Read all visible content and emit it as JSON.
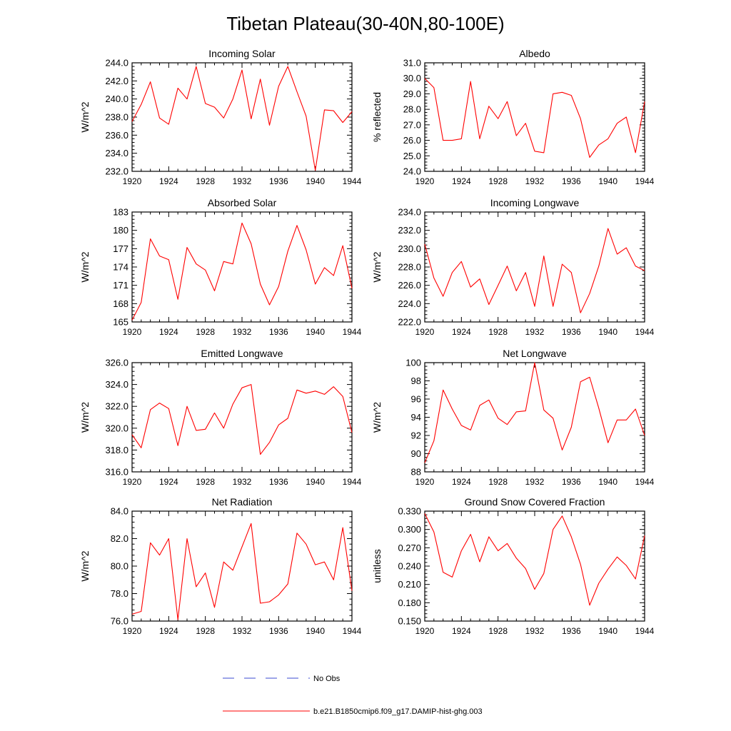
{
  "figure": {
    "title": "Tibetan Plateau(30-40N,80-100E)",
    "legend": [
      {
        "label": "No Obs",
        "color": "#3b4bd0",
        "style": "dashed"
      },
      {
        "label": "b.e21.B1850cmip6.f09_g17.DAMIP-hist-ghg.003",
        "color": "#ff0000",
        "style": "solid"
      }
    ]
  },
  "chart_data": [
    {
      "type": "line",
      "title": "Incoming Solar",
      "ylabel": "W/m^2",
      "xlim": [
        1920,
        1944
      ],
      "ylim": [
        232,
        244
      ],
      "xticks": [
        "1920",
        "1924",
        "1928",
        "1932",
        "1936",
        "1940",
        "1944"
      ],
      "yticks": [
        "232.0",
        "234.0",
        "236.0",
        "238.0",
        "240.0",
        "242.0",
        "244.0"
      ],
      "x": [
        1920,
        1921,
        1922,
        1923,
        1924,
        1925,
        1926,
        1927,
        1928,
        1929,
        1930,
        1931,
        1932,
        1933,
        1934,
        1935,
        1936,
        1937,
        1938,
        1939,
        1940,
        1941,
        1942,
        1943,
        1944
      ],
      "series": [
        {
          "color": "#ff0000",
          "values": [
            237.5,
            239.4,
            241.9,
            237.9,
            237.2,
            241.2,
            240.0,
            243.6,
            239.5,
            239.1,
            237.9,
            240.0,
            243.2,
            237.8,
            242.2,
            237.1,
            241.4,
            243.6,
            240.8,
            238.1,
            232.1,
            238.8,
            238.7,
            237.4,
            238.6
          ]
        }
      ]
    },
    {
      "type": "line",
      "title": "Albedo",
      "ylabel": "% reflected",
      "xlim": [
        1920,
        1944
      ],
      "ylim": [
        24,
        31
      ],
      "xticks": [
        "1920",
        "1924",
        "1928",
        "1932",
        "1936",
        "1940",
        "1944"
      ],
      "yticks": [
        "24.0",
        "25.0",
        "26.0",
        "27.0",
        "28.0",
        "29.0",
        "30.0",
        "31.0"
      ],
      "x": [
        1920,
        1921,
        1922,
        1923,
        1924,
        1925,
        1926,
        1927,
        1928,
        1929,
        1930,
        1931,
        1932,
        1933,
        1934,
        1935,
        1936,
        1937,
        1938,
        1939,
        1940,
        1941,
        1942,
        1943,
        1944
      ],
      "series": [
        {
          "color": "#ff0000",
          "values": [
            30.0,
            29.4,
            26.0,
            26.0,
            26.1,
            29.8,
            26.1,
            28.2,
            27.4,
            28.5,
            26.3,
            27.1,
            25.3,
            25.2,
            29.0,
            29.1,
            28.9,
            27.4,
            24.9,
            25.7,
            26.1,
            27.1,
            27.5,
            25.2,
            28.5
          ]
        }
      ]
    },
    {
      "type": "line",
      "title": "Absorbed Solar",
      "ylabel": "W/m^2",
      "xlim": [
        1920,
        1944
      ],
      "ylim": [
        165,
        183
      ],
      "xticks": [
        "1920",
        "1924",
        "1928",
        "1932",
        "1936",
        "1940",
        "1944"
      ],
      "yticks": [
        "165",
        "168",
        "171",
        "174",
        "177",
        "180",
        "183"
      ],
      "x": [
        1920,
        1921,
        1922,
        1923,
        1924,
        1925,
        1926,
        1927,
        1928,
        1929,
        1930,
        1931,
        1932,
        1933,
        1934,
        1935,
        1936,
        1937,
        1938,
        1939,
        1940,
        1941,
        1942,
        1943,
        1944
      ],
      "series": [
        {
          "color": "#ff0000",
          "values": [
            165.3,
            168.2,
            178.6,
            175.8,
            175.2,
            168.7,
            177.2,
            174.5,
            173.5,
            170.1,
            174.9,
            174.5,
            181.2,
            177.8,
            171.2,
            167.8,
            170.8,
            176.6,
            180.8,
            176.8,
            171.2,
            173.9,
            172.6,
            177.5,
            170.5
          ]
        }
      ]
    },
    {
      "type": "line",
      "title": "Incoming Longwave",
      "ylabel": "W/m^2",
      "xlim": [
        1920,
        1944
      ],
      "ylim": [
        222,
        234
      ],
      "xticks": [
        "1920",
        "1924",
        "1928",
        "1932",
        "1936",
        "1940",
        "1944"
      ],
      "yticks": [
        "222.0",
        "224.0",
        "226.0",
        "228.0",
        "230.0",
        "232.0",
        "234.0"
      ],
      "x": [
        1920,
        1921,
        1922,
        1923,
        1924,
        1925,
        1926,
        1927,
        1928,
        1929,
        1930,
        1931,
        1932,
        1933,
        1934,
        1935,
        1936,
        1937,
        1938,
        1939,
        1940,
        1941,
        1942,
        1943,
        1944
      ],
      "series": [
        {
          "color": "#ff0000",
          "values": [
            230.5,
            226.8,
            224.8,
            227.4,
            228.6,
            225.8,
            226.7,
            223.9,
            226.0,
            228.1,
            225.4,
            227.4,
            223.7,
            229.2,
            223.7,
            228.3,
            227.4,
            223.0,
            225.1,
            228.1,
            232.2,
            229.4,
            230.1,
            228.1,
            227.6
          ]
        }
      ]
    },
    {
      "type": "line",
      "title": "Emitted Longwave",
      "ylabel": "W/m^2",
      "xlim": [
        1920,
        1944
      ],
      "ylim": [
        316,
        326
      ],
      "xticks": [
        "1920",
        "1924",
        "1928",
        "1932",
        "1936",
        "1940",
        "1944"
      ],
      "yticks": [
        "316.0",
        "318.0",
        "320.0",
        "322.0",
        "324.0",
        "326.0"
      ],
      "x": [
        1920,
        1921,
        1922,
        1923,
        1924,
        1925,
        1926,
        1927,
        1928,
        1929,
        1930,
        1931,
        1932,
        1933,
        1934,
        1935,
        1936,
        1937,
        1938,
        1939,
        1940,
        1941,
        1942,
        1943,
        1944
      ],
      "series": [
        {
          "color": "#ff0000",
          "values": [
            319.4,
            318.2,
            321.7,
            322.3,
            321.8,
            318.4,
            322.0,
            319.8,
            319.9,
            321.4,
            320.0,
            322.2,
            323.7,
            324.0,
            317.6,
            318.7,
            320.3,
            320.9,
            323.5,
            323.2,
            323.4,
            323.1,
            323.8,
            322.9,
            319.6
          ]
        }
      ]
    },
    {
      "type": "line",
      "title": "Net Longwave",
      "ylabel": "W/m^2",
      "xlim": [
        1920,
        1944
      ],
      "ylim": [
        88,
        100
      ],
      "xticks": [
        "1920",
        "1924",
        "1928",
        "1932",
        "1936",
        "1940",
        "1944"
      ],
      "yticks": [
        "88",
        "90",
        "92",
        "94",
        "96",
        "98",
        "100"
      ],
      "x": [
        1920,
        1921,
        1922,
        1923,
        1924,
        1925,
        1926,
        1927,
        1928,
        1929,
        1930,
        1931,
        1932,
        1933,
        1934,
        1935,
        1936,
        1937,
        1938,
        1939,
        1940,
        1941,
        1942,
        1943,
        1944
      ],
      "series": [
        {
          "color": "#ff0000",
          "values": [
            89.0,
            91.4,
            97.0,
            94.9,
            93.1,
            92.6,
            95.3,
            95.9,
            93.9,
            93.2,
            94.6,
            94.7,
            100.0,
            94.8,
            93.9,
            90.4,
            92.9,
            97.9,
            98.4,
            95.0,
            91.2,
            93.7,
            93.7,
            94.9,
            92.0
          ]
        }
      ]
    },
    {
      "type": "line",
      "title": "Net Radiation",
      "ylabel": "W/m^2",
      "xlim": [
        1920,
        1944
      ],
      "ylim": [
        76,
        84
      ],
      "xticks": [
        "1920",
        "1924",
        "1928",
        "1932",
        "1936",
        "1940",
        "1944"
      ],
      "yticks": [
        "76.0",
        "78.0",
        "80.0",
        "82.0",
        "84.0"
      ],
      "x": [
        1920,
        1921,
        1922,
        1923,
        1924,
        1925,
        1926,
        1927,
        1928,
        1929,
        1930,
        1931,
        1932,
        1933,
        1934,
        1935,
        1936,
        1937,
        1938,
        1939,
        1940,
        1941,
        1942,
        1943,
        1944
      ],
      "series": [
        {
          "color": "#ff0000",
          "values": [
            76.5,
            76.7,
            81.7,
            80.8,
            82.0,
            76.1,
            82.0,
            78.5,
            79.5,
            77.0,
            80.3,
            79.7,
            81.4,
            83.1,
            77.3,
            77.4,
            77.9,
            78.7,
            82.4,
            81.6,
            80.1,
            80.3,
            79.0,
            82.8,
            78.2
          ]
        }
      ]
    },
    {
      "type": "line",
      "title": "Ground Snow Covered Fraction",
      "ylabel": "unitless",
      "xlim": [
        1920,
        1944
      ],
      "ylim": [
        0.15,
        0.33
      ],
      "xticks": [
        "1920",
        "1924",
        "1928",
        "1932",
        "1936",
        "1940",
        "1944"
      ],
      "yticks": [
        "0.150",
        "0.180",
        "0.210",
        "0.240",
        "0.270",
        "0.300",
        "0.330"
      ],
      "x": [
        1920,
        1921,
        1922,
        1923,
        1924,
        1925,
        1926,
        1927,
        1928,
        1929,
        1930,
        1931,
        1932,
        1933,
        1934,
        1935,
        1936,
        1937,
        1938,
        1939,
        1940,
        1941,
        1942,
        1943,
        1944
      ],
      "series": [
        {
          "color": "#ff0000",
          "values": [
            0.326,
            0.296,
            0.23,
            0.222,
            0.265,
            0.292,
            0.247,
            0.288,
            0.265,
            0.277,
            0.253,
            0.236,
            0.202,
            0.228,
            0.3,
            0.322,
            0.288,
            0.243,
            0.176,
            0.212,
            0.235,
            0.255,
            0.241,
            0.219,
            0.29
          ]
        }
      ]
    }
  ]
}
